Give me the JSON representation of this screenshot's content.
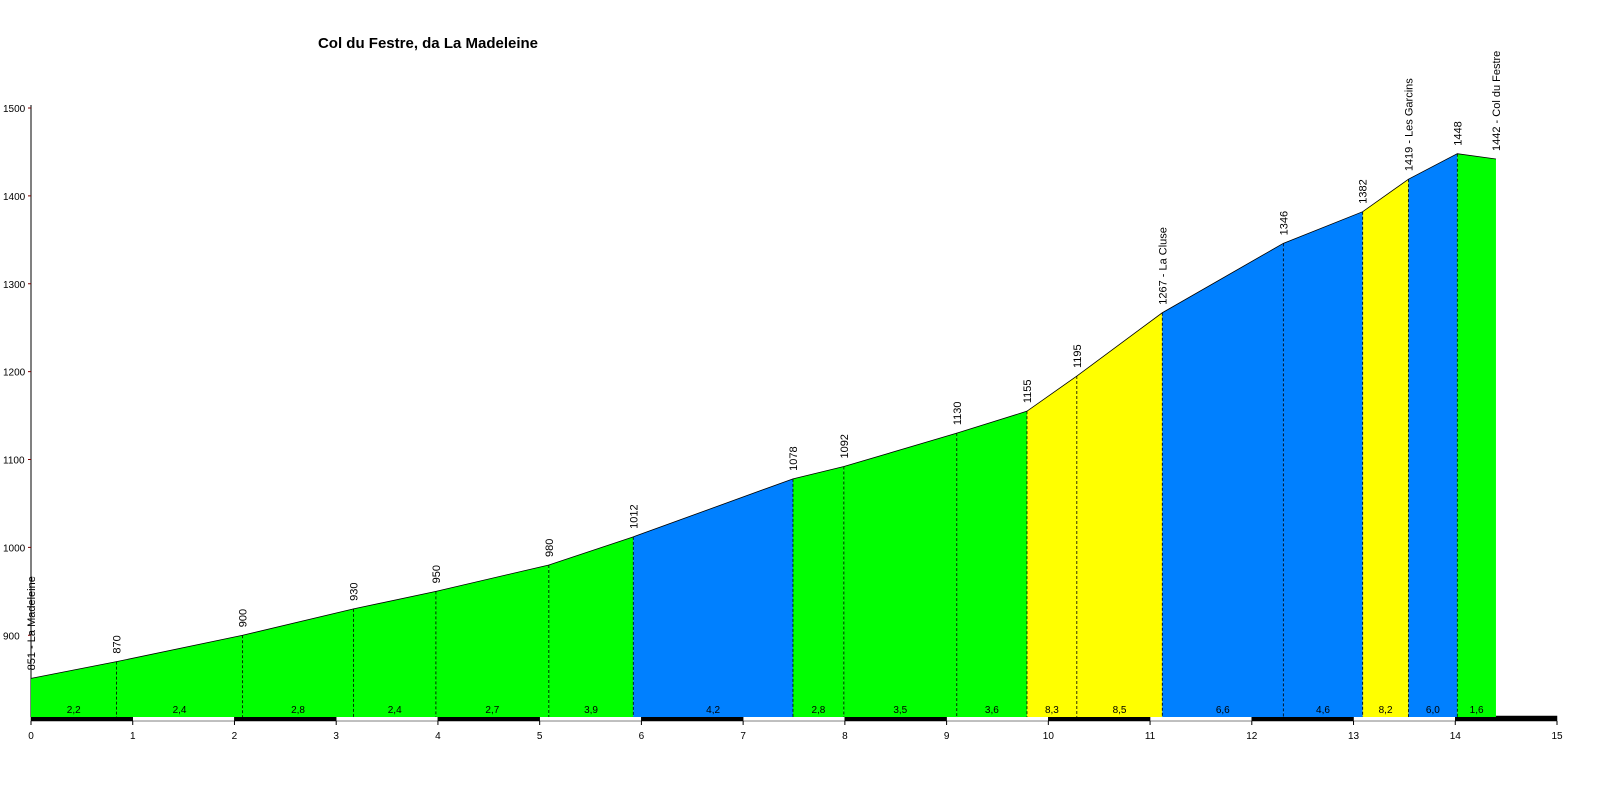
{
  "chart_data": {
    "type": "area",
    "title": "Col du Festre, da La Madeleine",
    "x": [
      0,
      0.84,
      2.08,
      3.17,
      3.98,
      5.09,
      5.92,
      7.49,
      7.99,
      9.1,
      9.79,
      10.28,
      11.12,
      12.31,
      13.09,
      13.54,
      14.02,
      14.4
    ],
    "values": [
      851,
      870,
      900,
      930,
      950,
      980,
      1012,
      1078,
      1092,
      1130,
      1155,
      1195,
      1267,
      1346,
      1382,
      1419,
      1448,
      1442
    ],
    "value_labels": [
      "851 - La Madeleine",
      "870",
      "900",
      "930",
      "950",
      "980",
      "1012",
      "1078",
      "1092",
      "1130",
      "1155",
      "1195",
      "1267 - La Cluse",
      "1346",
      "1382",
      "1419 - Les Garcins",
      "1448",
      "1442 - Col du Festre"
    ],
    "segments": {
      "values": [
        2.2,
        2.4,
        2.8,
        2.4,
        2.7,
        3.9,
        4.2,
        2.8,
        3.5,
        3.6,
        8.3,
        8.5,
        6.6,
        4.6,
        8.2,
        6.0,
        1.6
      ],
      "value_labels": [
        "2,2",
        "2,4",
        "2,8",
        "2,4",
        "2,7",
        "3,9",
        "4,2",
        "2,8",
        "3,5",
        "3,6",
        "8,3",
        "8,5",
        "6,6",
        "4,6",
        "8,2",
        "6,0",
        "1,6"
      ],
      "colors": [
        "#00ff00",
        "#00ff00",
        "#00ff00",
        "#00ff00",
        "#00ff00",
        "#00ff00",
        "#0080ff",
        "#00ff00",
        "#00ff00",
        "#00ff00",
        "#ffff00",
        "#ffff00",
        "#0080ff",
        "#0080ff",
        "#ffff00",
        "#0080ff",
        "#00ff00"
      ]
    },
    "xlim": [
      0,
      15
    ],
    "xticks": [
      0,
      1,
      2,
      3,
      4,
      5,
      6,
      7,
      8,
      9,
      10,
      11,
      12,
      13,
      14,
      15
    ],
    "ylim": [
      807,
      1500
    ],
    "yticks": [
      900,
      1000,
      1100,
      1200,
      1300,
      1400,
      1500
    ]
  }
}
